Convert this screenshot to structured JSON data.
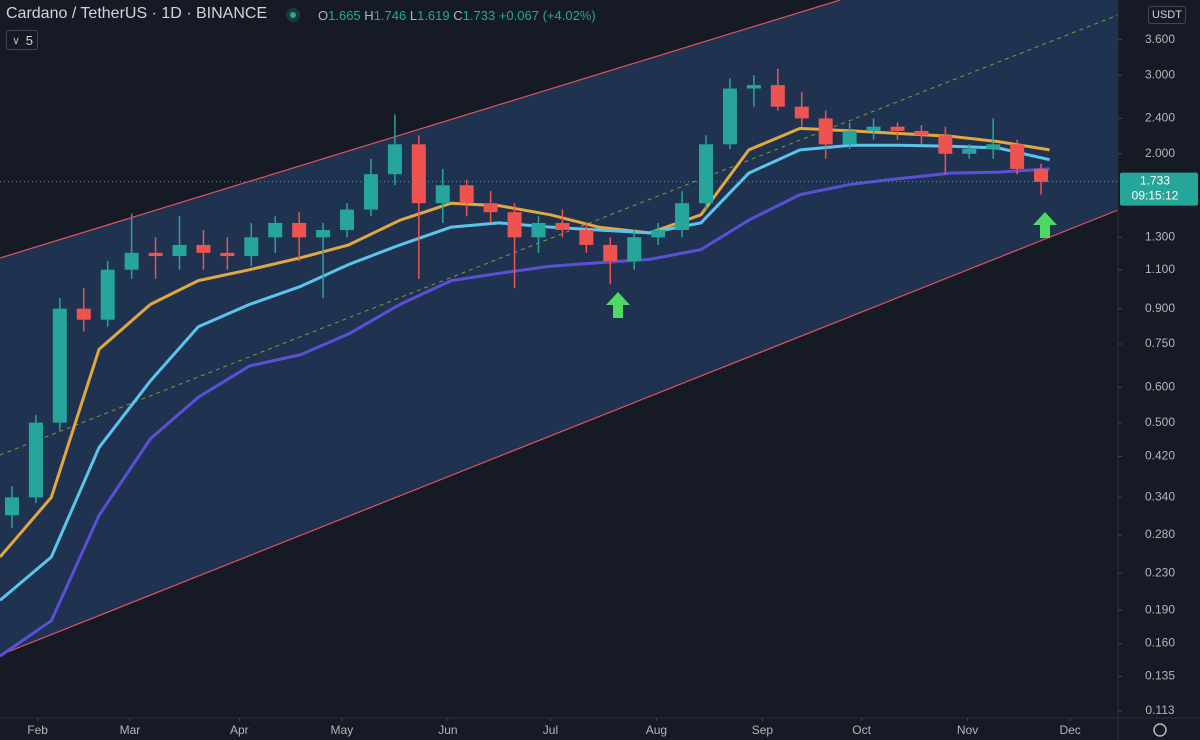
{
  "chart_data": {
    "type": "candlestick",
    "title": "Cardano / TetherUS · 1D · BINANCE",
    "ohlc_legend": [
      {
        "key": "O",
        "value": 1.665
      },
      {
        "key": "H",
        "value": 1.746
      },
      {
        "key": "L",
        "value": 1.619
      },
      {
        "key": "C",
        "value": 1.733
      }
    ],
    "change": {
      "value": 0.067,
      "label": "+0.067"
    },
    "change_pct": {
      "value": 4.02,
      "label": "(+4.02%)"
    },
    "indicator_count": 5,
    "currency": "USDT",
    "last_price": 1.733,
    "countdown": "09:15:12",
    "log_scale": true,
    "up_color": "#26a69a",
    "down_color": "#ef5350",
    "xlim": [
      0,
      327
    ],
    "xticks": [
      {
        "value": 11,
        "label": "Feb"
      },
      {
        "value": 38,
        "label": "Mar"
      },
      {
        "value": 70,
        "label": "Apr"
      },
      {
        "value": 100,
        "label": "May"
      },
      {
        "value": 131,
        "label": "Jun"
      },
      {
        "value": 161,
        "label": "Jul"
      },
      {
        "value": 192,
        "label": "Aug"
      },
      {
        "value": 223,
        "label": "Sep"
      },
      {
        "value": 252,
        "label": "Oct"
      },
      {
        "value": 283,
        "label": "Nov"
      },
      {
        "value": 313,
        "label": "Dec"
      }
    ],
    "ylim": [
      0.109,
      4.42
    ],
    "yticks": [
      {
        "value": 3.6,
        "label": "3.600"
      },
      {
        "value": 3,
        "label": "3.000"
      },
      {
        "value": 2.4,
        "label": "2.400"
      },
      {
        "value": 2,
        "label": "2.000"
      },
      {
        "value": 1.3,
        "label": "1.300"
      },
      {
        "value": 1.1,
        "label": "1.100"
      },
      {
        "value": 0.9,
        "label": "0.900"
      },
      {
        "value": 0.75,
        "label": "0.750"
      },
      {
        "value": 0.6,
        "label": "0.600"
      },
      {
        "value": 0.5,
        "label": "0.500"
      },
      {
        "value": 0.42,
        "label": "0.420"
      },
      {
        "value": 0.34,
        "label": "0.340"
      },
      {
        "value": 0.28,
        "label": "0.280"
      },
      {
        "value": 0.23,
        "label": "0.230"
      },
      {
        "value": 0.19,
        "label": "0.190"
      },
      {
        "value": 0.16,
        "label": "0.160"
      },
      {
        "value": 0.135,
        "label": "0.135"
      },
      {
        "value": 0.113,
        "label": "0.113"
      }
    ],
    "x": [
      3.5,
      10.5,
      17.5,
      24.5,
      31.5,
      38.5,
      45.5,
      52.5,
      59.5,
      66.5,
      73.5,
      80.5,
      87.5,
      94.5,
      101.5,
      108.5,
      115.5,
      122.5,
      129.5,
      136.5,
      143.5,
      150.5,
      157.5,
      164.5,
      171.5,
      178.5,
      185.5,
      192.5,
      199.5,
      206.5,
      213.5,
      220.5,
      227.5,
      234.5,
      241.5,
      248.5,
      255.5,
      262.5,
      269.5,
      276.5,
      283.5,
      290.5,
      297.5,
      304.5
    ],
    "open": [
      0.31,
      0.34,
      0.5,
      0.9,
      0.85,
      1.1,
      1.2,
      1.18,
      1.25,
      1.2,
      1.18,
      1.3,
      1.4,
      1.3,
      1.35,
      1.5,
      1.8,
      2.1,
      1.55,
      1.7,
      1.55,
      1.48,
      1.3,
      1.4,
      1.35,
      1.25,
      1.15,
      1.3,
      1.35,
      1.55,
      2.1,
      2.8,
      2.85,
      2.55,
      2.4,
      2.1,
      2.25,
      2.3,
      2.25,
      2.2,
      2.0,
      2.05,
      2.1,
      1.85
    ],
    "high": [
      0.36,
      0.52,
      0.95,
      1.0,
      1.15,
      1.47,
      1.3,
      1.45,
      1.35,
      1.3,
      1.4,
      1.45,
      1.48,
      1.4,
      1.55,
      1.95,
      2.45,
      2.2,
      1.85,
      1.75,
      1.65,
      1.55,
      1.45,
      1.5,
      1.4,
      1.3,
      1.35,
      1.4,
      1.65,
      2.2,
      2.95,
      3.0,
      3.1,
      2.75,
      2.5,
      2.35,
      2.4,
      2.35,
      2.32,
      2.3,
      2.1,
      2.4,
      2.15,
      1.9
    ],
    "low": [
      0.29,
      0.33,
      0.48,
      0.8,
      0.82,
      1.05,
      1.05,
      1.1,
      1.1,
      1.1,
      1.12,
      1.2,
      1.15,
      0.95,
      1.3,
      1.45,
      1.7,
      1.05,
      1.4,
      1.45,
      1.4,
      1.0,
      1.2,
      1.3,
      1.2,
      1.02,
      1.1,
      1.25,
      1.3,
      1.5,
      2.05,
      2.55,
      2.5,
      2.3,
      1.95,
      2.05,
      2.15,
      2.15,
      2.1,
      1.8,
      1.95,
      1.95,
      1.8,
      1.62
    ],
    "close": [
      0.34,
      0.5,
      0.9,
      0.85,
      1.1,
      1.2,
      1.18,
      1.25,
      1.2,
      1.18,
      1.3,
      1.4,
      1.3,
      1.35,
      1.5,
      1.8,
      2.1,
      1.55,
      1.7,
      1.55,
      1.48,
      1.3,
      1.4,
      1.35,
      1.25,
      1.15,
      1.3,
      1.35,
      1.55,
      2.1,
      2.8,
      2.85,
      2.55,
      2.4,
      2.1,
      2.25,
      2.3,
      2.25,
      2.2,
      2.0,
      2.05,
      2.1,
      1.85,
      1.73
    ],
    "ma_x": [
      0,
      15,
      29,
      44,
      58,
      73,
      88,
      102,
      117,
      132,
      146,
      161,
      175,
      190,
      205,
      219,
      234,
      249,
      263,
      278,
      292,
      307
    ],
    "moving_averages": [
      {
        "color": "#e0a83f",
        "values": [
          0.25,
          0.34,
          0.73,
          0.92,
          1.04,
          1.1,
          1.17,
          1.25,
          1.42,
          1.55,
          1.53,
          1.46,
          1.37,
          1.33,
          1.46,
          2.04,
          2.28,
          2.25,
          2.22,
          2.19,
          2.13,
          2.04
        ]
      },
      {
        "color": "#5bc4ec",
        "values": [
          0.2,
          0.25,
          0.44,
          0.62,
          0.82,
          0.92,
          1.01,
          1.13,
          1.25,
          1.37,
          1.4,
          1.37,
          1.35,
          1.33,
          1.4,
          1.81,
          2.04,
          2.09,
          2.09,
          2.08,
          2.06,
          1.94
        ]
      },
      {
        "color": "#5b4fd6",
        "values": [
          0.15,
          0.18,
          0.31,
          0.46,
          0.57,
          0.67,
          0.71,
          0.79,
          0.92,
          1.04,
          1.08,
          1.12,
          1.14,
          1.16,
          1.22,
          1.42,
          1.62,
          1.71,
          1.76,
          1.81,
          1.82,
          1.85
        ]
      }
    ]
  }
}
